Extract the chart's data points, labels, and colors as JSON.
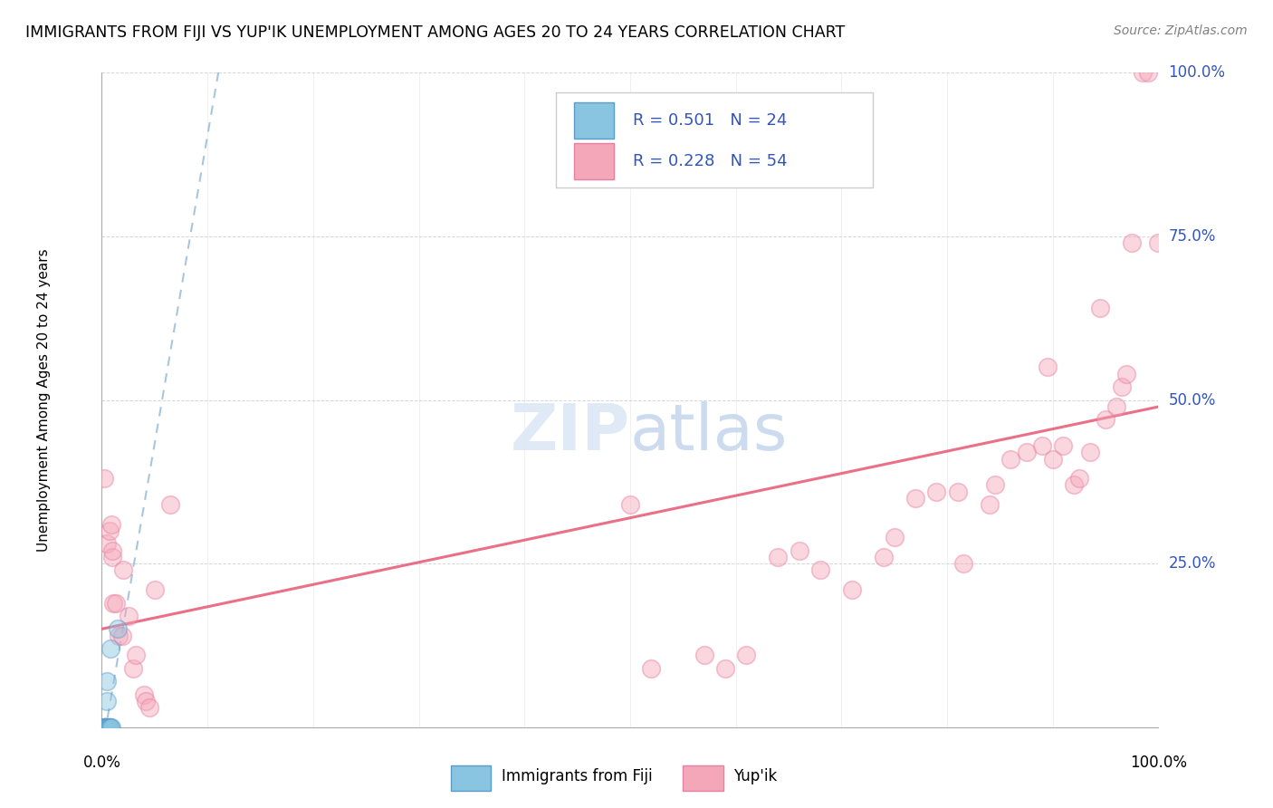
{
  "title": "IMMIGRANTS FROM FIJI VS YUP'IK UNEMPLOYMENT AMONG AGES 20 TO 24 YEARS CORRELATION CHART",
  "source": "Source: ZipAtlas.com",
  "ylabel": "Unemployment Among Ages 20 to 24 years",
  "fiji_label": "Immigrants from Fiji",
  "yupik_label": "Yup'ik",
  "fiji_R": 0.501,
  "fiji_N": 24,
  "yupik_R": 0.228,
  "yupik_N": 54,
  "fiji_color": "#89c4e1",
  "fiji_edge_color": "#5b9dc8",
  "yupik_color": "#f4a7b9",
  "yupik_edge_color": "#e87fa0",
  "fiji_trend_color": "#8ab4d4",
  "yupik_trend_color": "#e8607a",
  "background_color": "#ffffff",
  "grid_color": "#cccccc",
  "label_color": "#3355bb",
  "xlim": [
    0.0,
    1.0
  ],
  "ylim": [
    0.0,
    1.0
  ],
  "ytick_values": [
    0.0,
    0.25,
    0.5,
    0.75,
    1.0
  ],
  "ytick_labels": [
    "0.0%",
    "25.0%",
    "50.0%",
    "75.0%",
    "100.0%"
  ],
  "xtick_values": [
    0.0,
    0.1,
    0.2,
    0.3,
    0.4,
    0.5,
    0.6,
    0.7,
    0.8,
    0.9,
    1.0
  ],
  "fiji_x": [
    0.002,
    0.002,
    0.003,
    0.003,
    0.003,
    0.004,
    0.004,
    0.004,
    0.004,
    0.005,
    0.005,
    0.005,
    0.005,
    0.005,
    0.006,
    0.006,
    0.006,
    0.007,
    0.007,
    0.007,
    0.008,
    0.008,
    0.009,
    0.015
  ],
  "fiji_y": [
    0.0,
    0.0,
    0.0,
    0.0,
    0.0,
    0.0,
    0.0,
    0.0,
    0.0,
    0.0,
    0.0,
    0.0,
    0.04,
    0.07,
    0.0,
    0.0,
    0.0,
    0.0,
    0.0,
    0.0,
    0.0,
    0.12,
    0.0,
    0.15
  ],
  "yupik_x": [
    0.002,
    0.005,
    0.007,
    0.009,
    0.01,
    0.01,
    0.011,
    0.013,
    0.016,
    0.019,
    0.02,
    0.025,
    0.03,
    0.032,
    0.04,
    0.042,
    0.045,
    0.05,
    0.065,
    0.5,
    0.52,
    0.57,
    0.59,
    0.61,
    0.64,
    0.66,
    0.68,
    0.71,
    0.74,
    0.75,
    0.77,
    0.79,
    0.81,
    0.815,
    0.84,
    0.845,
    0.86,
    0.875,
    0.89,
    0.895,
    0.9,
    0.91,
    0.92,
    0.925,
    0.935,
    0.945,
    0.95,
    0.96,
    0.965,
    0.97,
    0.975,
    0.985,
    0.99,
    1.0
  ],
  "yupik_y": [
    0.38,
    0.28,
    0.3,
    0.31,
    0.26,
    0.27,
    0.19,
    0.19,
    0.14,
    0.14,
    0.24,
    0.17,
    0.09,
    0.11,
    0.05,
    0.04,
    0.03,
    0.21,
    0.34,
    0.34,
    0.09,
    0.11,
    0.09,
    0.11,
    0.26,
    0.27,
    0.24,
    0.21,
    0.26,
    0.29,
    0.35,
    0.36,
    0.36,
    0.25,
    0.34,
    0.37,
    0.41,
    0.42,
    0.43,
    0.55,
    0.41,
    0.43,
    0.37,
    0.38,
    0.42,
    0.64,
    0.47,
    0.49,
    0.52,
    0.54,
    0.74,
    1.0,
    1.0,
    0.74
  ],
  "marker_size": 200,
  "marker_alpha": 0.45,
  "marker_lw": 1.2
}
